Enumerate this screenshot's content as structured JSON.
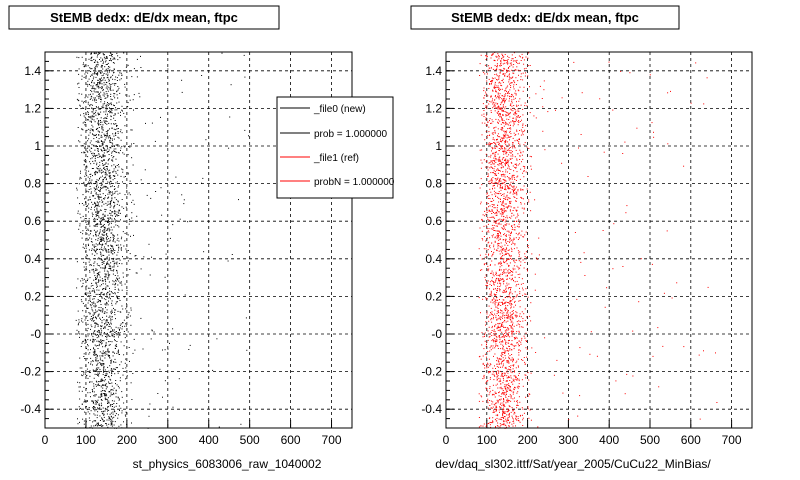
{
  "chart_data": [
    {
      "type": "scatter",
      "title": "StEMB dedx: dE/dx mean, ftpc",
      "xlabel": "st_physics_6083006_raw_1040002",
      "ylabel": "",
      "xlim": [
        0,
        750
      ],
      "ylim": [
        -0.5,
        1.5
      ],
      "xticks": [
        "0",
        "100",
        "200",
        "300",
        "400",
        "500",
        "600",
        "700"
      ],
      "yticks": [
        "-0.4",
        "-0.2",
        "-0",
        "0.2",
        "0.4",
        "0.6",
        "0.8",
        "1",
        "1.2",
        "1.4"
      ],
      "grid": true,
      "series": [
        {
          "name": "_file0 (new)",
          "color": "#000000",
          "points": {
            "dense_band": {
              "x_range": [
                75,
                210
              ],
              "y_range": [
                -0.5,
                1.5
              ],
              "peak_x": 140
            },
            "sparse_tail": {
              "x_range": [
                210,
                500
              ],
              "y_range": [
                -0.5,
                1.5
              ]
            }
          }
        }
      ],
      "legend": {
        "placement": "top-right",
        "entries": [
          {
            "label": "_file0 (new)",
            "color": "#000000"
          },
          {
            "label": "prob = 1.000000",
            "color": "#000000"
          },
          {
            "label": "_file1 (ref)",
            "color": "#ff0000"
          },
          {
            "label": "probN = 1.000000",
            "color": "#ff0000"
          }
        ]
      }
    },
    {
      "type": "scatter",
      "title": "StEMB dedx: dE/dx mean, ftpc",
      "xlabel": "dev/daq_sl302.ittf/Sat/year_2005/CuCu22_MinBias/",
      "ylabel": "",
      "xlim": [
        0,
        750
      ],
      "ylim": [
        -0.5,
        1.5
      ],
      "xticks": [
        "0",
        "100",
        "200",
        "300",
        "400",
        "500",
        "600",
        "700"
      ],
      "yticks": [
        "-0.4",
        "-0.2",
        "-0",
        "0.2",
        "0.4",
        "0.6",
        "0.8",
        "1",
        "1.2",
        "1.4"
      ],
      "grid": true,
      "series": [
        {
          "name": "_file1 (ref)",
          "color": "#ff0000",
          "points": {
            "dense_band": {
              "x_range": [
                80,
                205
              ],
              "y_range": [
                -0.5,
                1.5
              ],
              "peak_x": 140
            },
            "sparse_tail": {
              "x_range": [
                205,
                680
              ],
              "y_range": [
                -0.5,
                1.5
              ]
            }
          }
        }
      ]
    }
  ]
}
